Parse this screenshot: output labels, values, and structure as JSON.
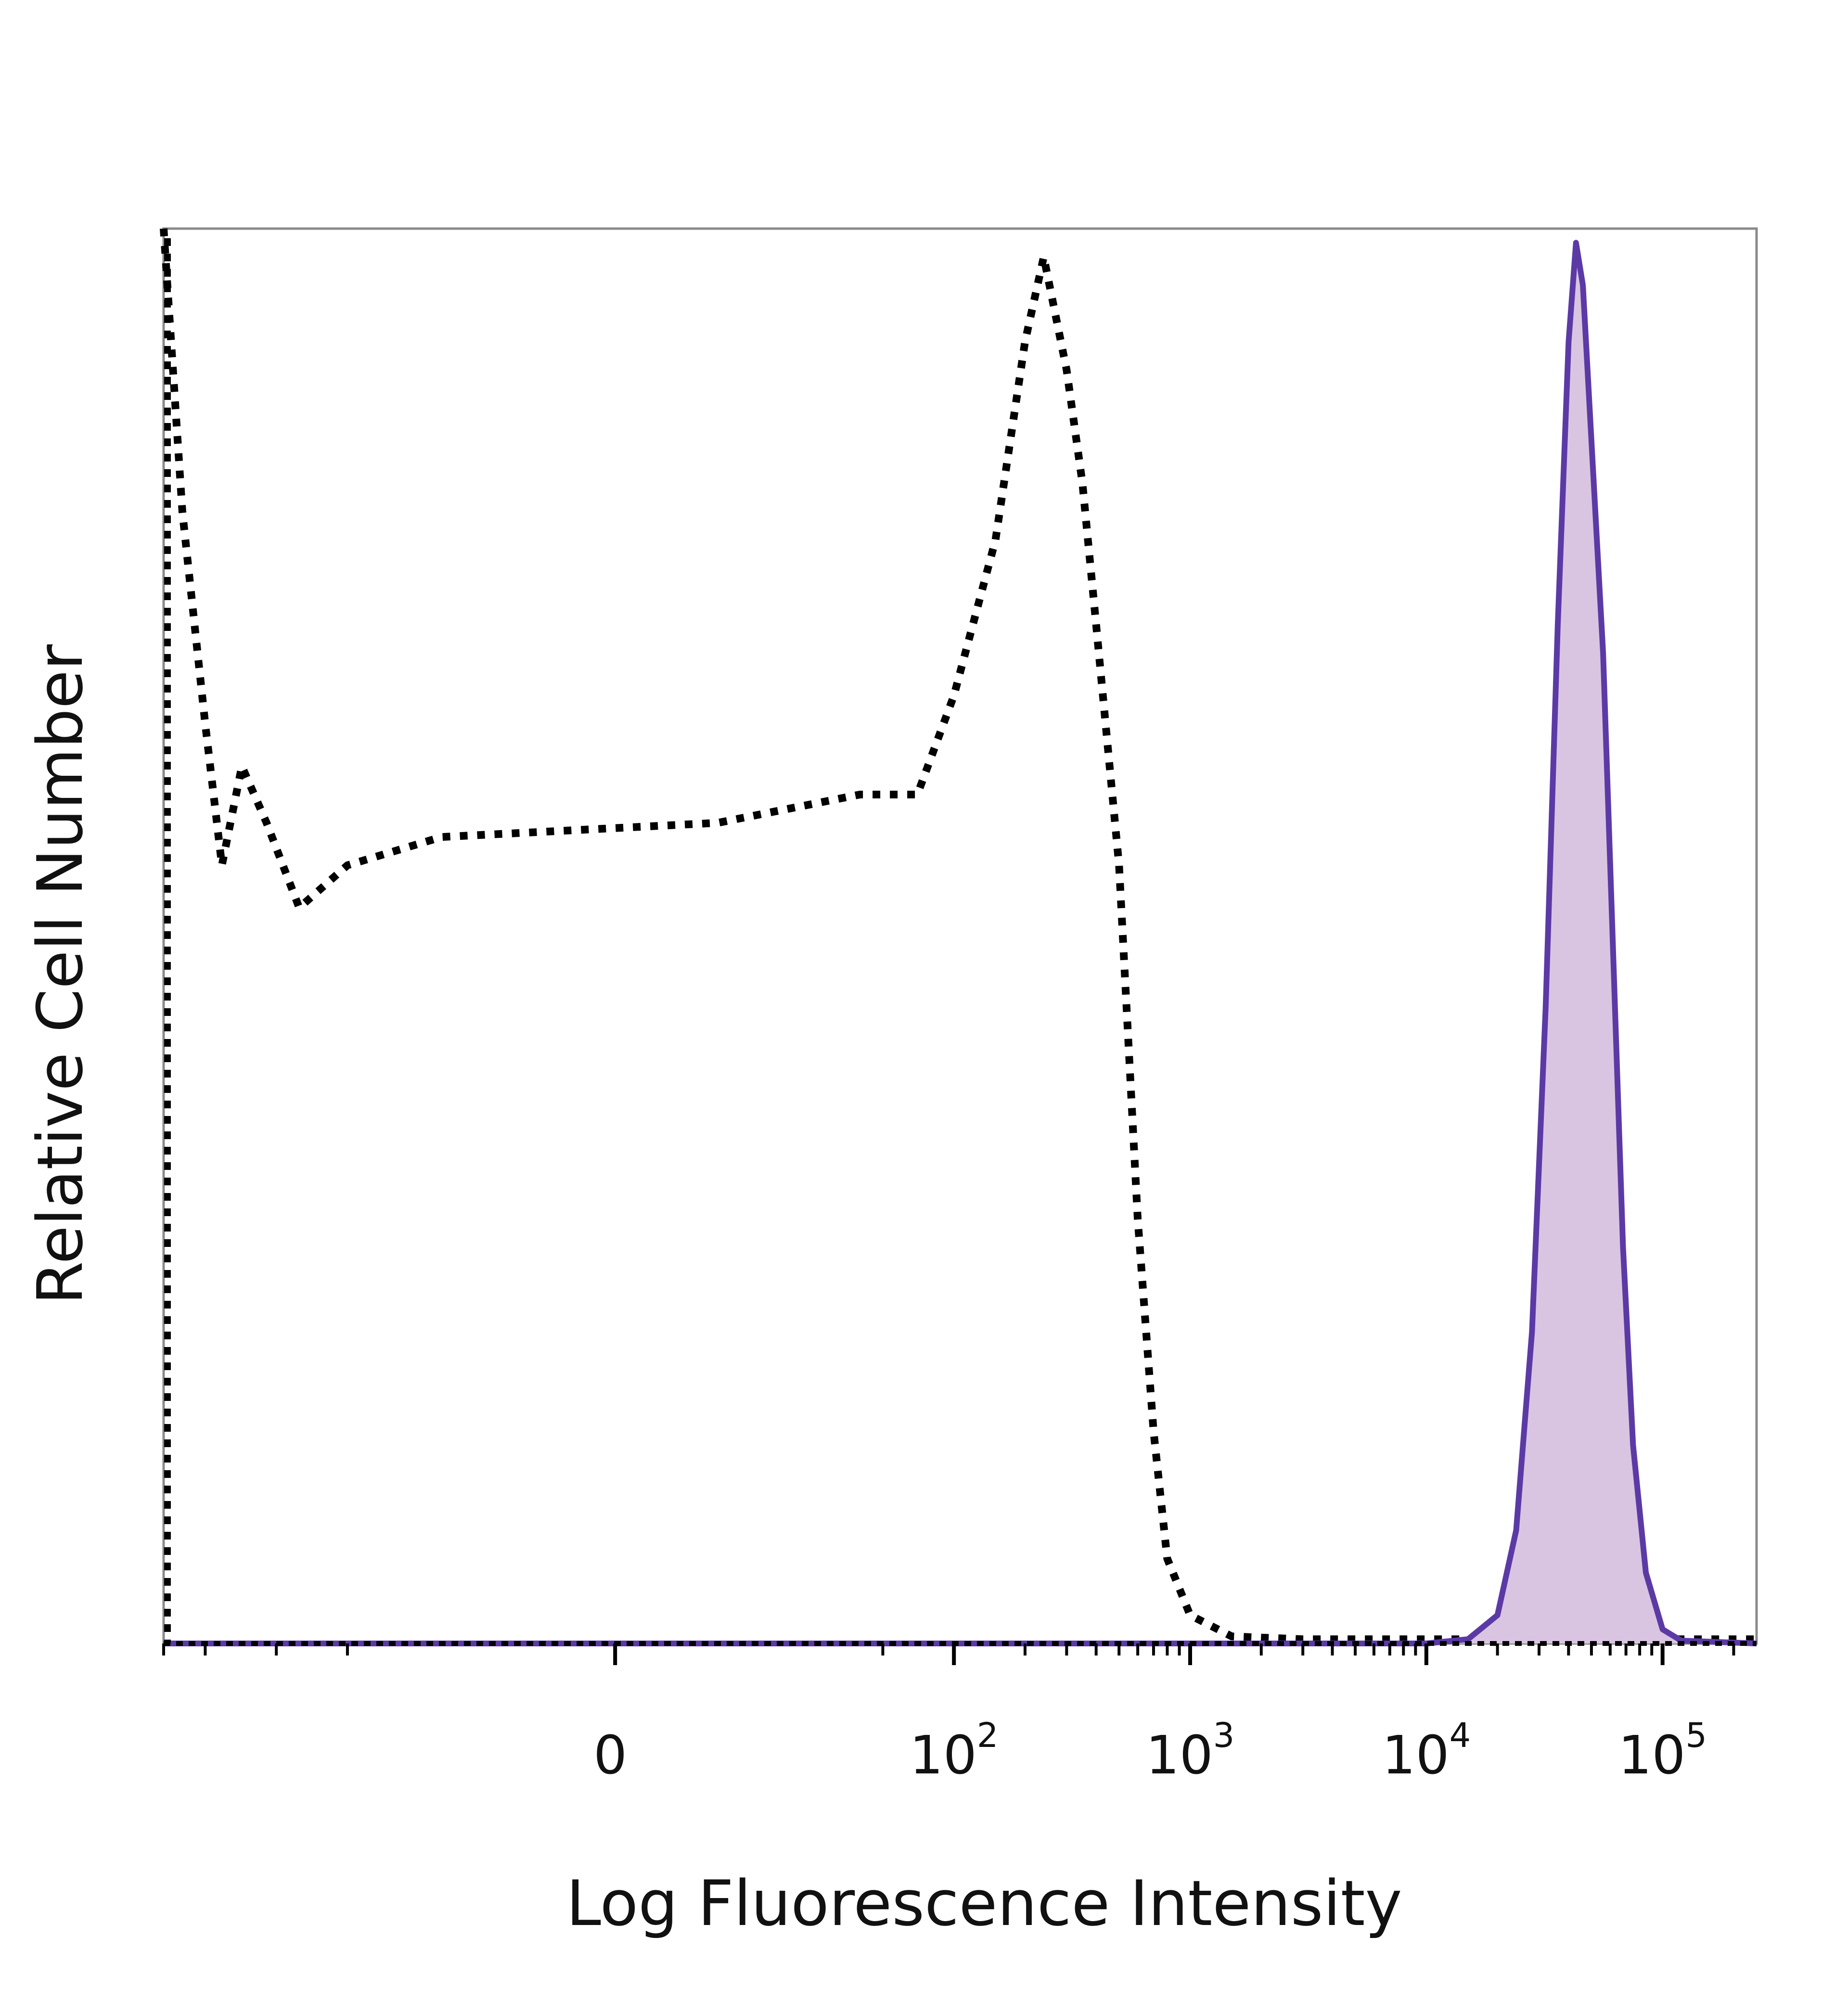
{
  "chart_data": {
    "type": "area",
    "title": "",
    "xlabel": "Log Fluorescence Intensity",
    "ylabel": "Relative Cell Number",
    "x_scale": "biexponential",
    "xlim": [
      -300,
      250000
    ],
    "ylim": [
      0,
      100
    ],
    "x_ticks": [
      {
        "value": 0,
        "label": "0",
        "exp": ""
      },
      {
        "value": 100,
        "label": "10",
        "exp": "2"
      },
      {
        "value": 1000,
        "label": "10",
        "exp": "3"
      },
      {
        "value": 10000,
        "label": "10",
        "exp": "4"
      },
      {
        "value": 100000,
        "label": "10",
        "exp": "5"
      }
    ],
    "grid": false,
    "legend": "none",
    "series": [
      {
        "style": "dotted",
        "color": "#000000",
        "points": [
          [
            -300,
            100
          ],
          [
            -250,
            80
          ],
          [
            -200,
            65
          ],
          [
            -170,
            55
          ],
          [
            -140,
            62
          ],
          [
            -110,
            58
          ],
          [
            -80,
            52
          ],
          [
            -50,
            55
          ],
          [
            -20,
            57
          ],
          [
            10,
            58
          ],
          [
            40,
            60
          ],
          [
            70,
            60
          ],
          [
            100,
            67
          ],
          [
            150,
            78
          ],
          [
            200,
            92
          ],
          [
            240,
            98
          ],
          [
            300,
            90
          ],
          [
            350,
            82
          ],
          [
            400,
            72
          ],
          [
            500,
            55
          ],
          [
            600,
            30
          ],
          [
            700,
            15
          ],
          [
            800,
            6
          ],
          [
            1000,
            2
          ],
          [
            1500,
            0.5
          ],
          [
            3000,
            0.3
          ],
          [
            10000,
            0.3
          ],
          [
            30000,
            0.3
          ],
          [
            100000,
            0.3
          ],
          [
            250000,
            0.3
          ]
        ]
      },
      {
        "style": "solid-filled",
        "color": "#5b3aa6",
        "fill": "#d9c5e1",
        "points": [
          [
            -300,
            0
          ],
          [
            10000,
            0
          ],
          [
            15000,
            0.3
          ],
          [
            20000,
            2
          ],
          [
            24000,
            8
          ],
          [
            28000,
            22
          ],
          [
            32000,
            45
          ],
          [
            36000,
            72
          ],
          [
            40000,
            92
          ],
          [
            43000,
            99
          ],
          [
            46000,
            96
          ],
          [
            50000,
            85
          ],
          [
            56000,
            70
          ],
          [
            62000,
            48
          ],
          [
            68000,
            28
          ],
          [
            75000,
            14
          ],
          [
            85000,
            5
          ],
          [
            100000,
            1
          ],
          [
            120000,
            0.2
          ],
          [
            250000,
            0
          ]
        ]
      }
    ]
  }
}
